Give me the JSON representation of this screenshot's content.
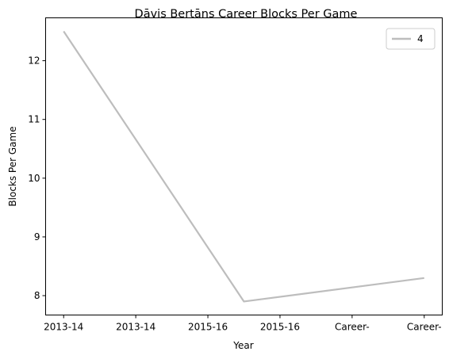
{
  "chart_data": {
    "type": "line",
    "title": "Dāvis Bertāns Career Blocks Per Game",
    "xlabel": "Year",
    "ylabel": "Blocks Per Game",
    "categories": [
      "2013-14",
      "2013-14",
      "2015-16",
      "2015-16",
      "Career-",
      "Career-"
    ],
    "series": [
      {
        "name": "4",
        "color": "#bdbdbd",
        "points": [
          {
            "x": 0,
            "y": 12.5
          },
          {
            "x": 2.5,
            "y": 7.9
          },
          {
            "x": 5,
            "y": 8.3
          }
        ]
      }
    ],
    "xlim": [
      -0.25,
      5.25
    ],
    "ylim": [
      7.67,
      12.73
    ],
    "yticks": [
      "8",
      "9",
      "10",
      "11",
      "12"
    ],
    "grid": false,
    "legend_position": "top-right"
  }
}
